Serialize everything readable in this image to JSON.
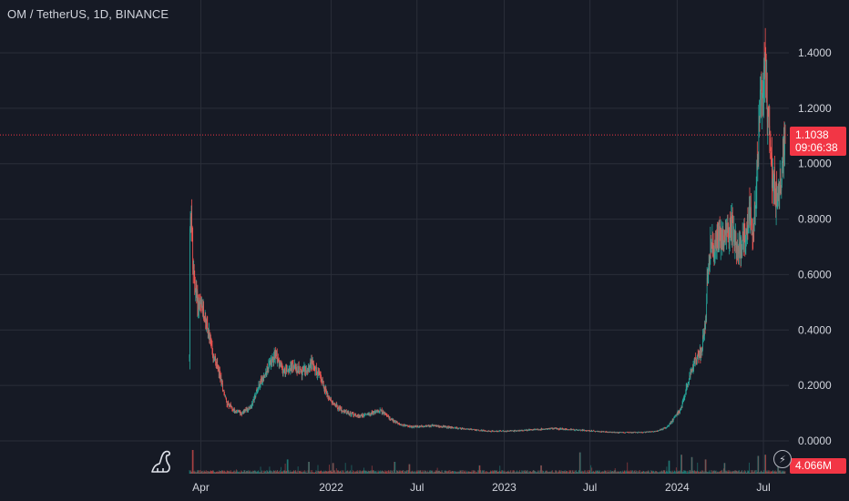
{
  "header": {
    "symbol_title": "OM / TetherUS, 1D, BINANCE"
  },
  "price_tag": {
    "price": "1.1038",
    "countdown": "09:06:38"
  },
  "volume_tag": {
    "value": "4.066M"
  },
  "icons": {
    "logo": "tradingview-dino-icon",
    "bolt": "lightning-icon"
  },
  "colors": {
    "background": "#161a25",
    "grid": "#2a2e39",
    "up": "#26a69a",
    "down": "#ef5350",
    "price_line": "#f23645",
    "text": "#d1d4dc"
  },
  "chart_data": {
    "type": "candlestick",
    "title": "OM / TetherUS, 1D, BINANCE",
    "y_ticks": [
      "1.4000",
      "1.2000",
      "1.0000",
      "0.8000",
      "0.6000",
      "0.4000",
      "0.2000",
      "0.0000"
    ],
    "ylim": [
      0,
      1.4
    ],
    "x_ticks": [
      "Apr",
      "2022",
      "Jul",
      "2023",
      "Jul",
      "2024",
      "Jul"
    ],
    "x_range": [
      "2021-03-08",
      "2024-08-16"
    ],
    "grid": true,
    "last_price": 1.1038,
    "last_volume": "4.066M",
    "price_path": [
      [
        "2021-03-08",
        0.3
      ],
      [
        "2021-03-09",
        0.75
      ],
      [
        "2021-03-12",
        0.86
      ],
      [
        "2021-03-15",
        0.62
      ],
      [
        "2021-03-25",
        0.5
      ],
      [
        "2021-04-10",
        0.45
      ],
      [
        "2021-04-25",
        0.32
      ],
      [
        "2021-05-10",
        0.24
      ],
      [
        "2021-05-25",
        0.14
      ],
      [
        "2021-06-10",
        0.11
      ],
      [
        "2021-06-25",
        0.1
      ],
      [
        "2021-07-15",
        0.12
      ],
      [
        "2021-08-01",
        0.2
      ],
      [
        "2021-08-20",
        0.26
      ],
      [
        "2021-09-05",
        0.32
      ],
      [
        "2021-09-20",
        0.25
      ],
      [
        "2021-10-10",
        0.27
      ],
      [
        "2021-11-01",
        0.25
      ],
      [
        "2021-11-20",
        0.28
      ],
      [
        "2021-12-10",
        0.23
      ],
      [
        "2021-12-25",
        0.16
      ],
      [
        "2022-01-15",
        0.12
      ],
      [
        "2022-02-05",
        0.1
      ],
      [
        "2022-03-01",
        0.09
      ],
      [
        "2022-03-25",
        0.1
      ],
      [
        "2022-04-15",
        0.11
      ],
      [
        "2022-05-05",
        0.08
      ],
      [
        "2022-05-25",
        0.06
      ],
      [
        "2022-06-20",
        0.05
      ],
      [
        "2022-08-01",
        0.055
      ],
      [
        "2022-09-01",
        0.05
      ],
      [
        "2022-10-01",
        0.045
      ],
      [
        "2022-11-01",
        0.04
      ],
      [
        "2022-12-01",
        0.035
      ],
      [
        "2023-01-15",
        0.035
      ],
      [
        "2023-03-01",
        0.04
      ],
      [
        "2023-04-15",
        0.045
      ],
      [
        "2023-06-01",
        0.04
      ],
      [
        "2023-07-15",
        0.035
      ],
      [
        "2023-09-01",
        0.03
      ],
      [
        "2023-10-15",
        0.03
      ],
      [
        "2023-11-20",
        0.035
      ],
      [
        "2023-12-10",
        0.05
      ],
      [
        "2023-12-25",
        0.08
      ],
      [
        "2024-01-10",
        0.12
      ],
      [
        "2024-01-25",
        0.22
      ],
      [
        "2024-02-05",
        0.28
      ],
      [
        "2024-02-20",
        0.32
      ],
      [
        "2024-03-01",
        0.42
      ],
      [
        "2024-03-05",
        0.6
      ],
      [
        "2024-03-12",
        0.72
      ],
      [
        "2024-03-20",
        0.68
      ],
      [
        "2024-04-01",
        0.75
      ],
      [
        "2024-04-15",
        0.72
      ],
      [
        "2024-04-25",
        0.78
      ],
      [
        "2024-05-05",
        0.7
      ],
      [
        "2024-05-12",
        0.68
      ],
      [
        "2024-05-20",
        0.72
      ],
      [
        "2024-06-01",
        0.82
      ],
      [
        "2024-06-10",
        0.76
      ],
      [
        "2024-06-20",
        1.05
      ],
      [
        "2024-06-25",
        1.25
      ],
      [
        "2024-07-01",
        1.3
      ],
      [
        "2024-07-05",
        1.4
      ],
      [
        "2024-07-10",
        1.15
      ],
      [
        "2024-07-20",
        0.95
      ],
      [
        "2024-07-28",
        0.88
      ],
      [
        "2024-08-05",
        0.92
      ],
      [
        "2024-08-10",
        1.0
      ],
      [
        "2024-08-16",
        1.1038
      ]
    ],
    "volume_spikes": [
      [
        "2021-03-15",
        1.0
      ],
      [
        "2021-10-01",
        0.6
      ],
      [
        "2021-11-15",
        0.5
      ],
      [
        "2022-01-05",
        0.45
      ],
      [
        "2022-05-15",
        0.5
      ],
      [
        "2022-06-15",
        0.4
      ],
      [
        "2022-11-10",
        0.35
      ],
      [
        "2023-03-20",
        0.35
      ],
      [
        "2023-06-10",
        0.9
      ],
      [
        "2023-12-15",
        0.55
      ],
      [
        "2024-01-10",
        0.8
      ],
      [
        "2024-02-01",
        0.7
      ],
      [
        "2024-03-01",
        0.6
      ],
      [
        "2024-04-10",
        0.45
      ],
      [
        "2024-06-20",
        0.75
      ],
      [
        "2024-07-05",
        0.8
      ],
      [
        "2024-08-01",
        0.5
      ]
    ]
  }
}
